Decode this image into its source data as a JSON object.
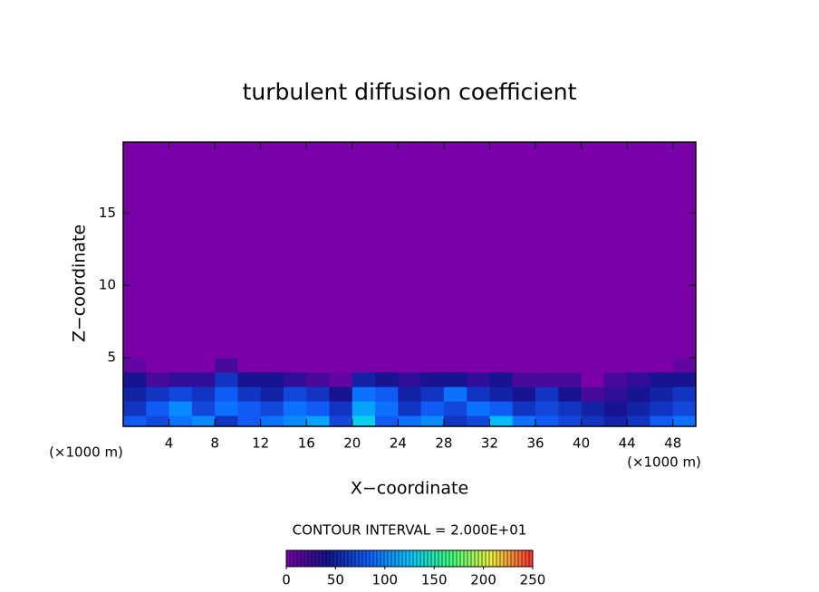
{
  "chart_data": {
    "type": "heatmap",
    "title": "turbulent diffusion coefficient",
    "xlabel": "X−coordinate",
    "ylabel": "Z−coordinate",
    "x_unit": "(×1000 m)",
    "y_unit": "(×1000 m)",
    "annotation": "CONTOUR INTERVAL = 2.000E+01",
    "xlim": [
      0,
      50
    ],
    "xticks": [
      4,
      8,
      12,
      16,
      20,
      24,
      28,
      32,
      36,
      40,
      44,
      48
    ],
    "ylim": [
      0.25,
      19.9
    ],
    "yticks": [
      5,
      10,
      15
    ],
    "x_edges": [
      0,
      2,
      4,
      6,
      8,
      10,
      12,
      14,
      16,
      18,
      20,
      22,
      24,
      26,
      28,
      30,
      32,
      34,
      36,
      38,
      40,
      42,
      44,
      46,
      48,
      50
    ],
    "z_edges": [
      0,
      1,
      2,
      3,
      4,
      5,
      20
    ],
    "z": [
      [
        80,
        70,
        90,
        100,
        60,
        80,
        90,
        100,
        110,
        70,
        130,
        80,
        90,
        100,
        60,
        70,
        120,
        90,
        80,
        70,
        60,
        50,
        60,
        80,
        90
      ],
      [
        60,
        80,
        100,
        70,
        90,
        80,
        70,
        90,
        80,
        60,
        110,
        90,
        60,
        80,
        70,
        90,
        80,
        60,
        70,
        60,
        50,
        40,
        50,
        60,
        70
      ],
      [
        50,
        60,
        70,
        60,
        80,
        60,
        50,
        70,
        60,
        40,
        90,
        80,
        50,
        60,
        90,
        60,
        50,
        40,
        60,
        40,
        20,
        30,
        40,
        50,
        60
      ],
      [
        40,
        20,
        30,
        30,
        60,
        40,
        40,
        30,
        20,
        10,
        50,
        40,
        30,
        40,
        40,
        30,
        40,
        20,
        20,
        20,
        0,
        20,
        30,
        40,
        40
      ],
      [
        10,
        0,
        0,
        0,
        20,
        0,
        0,
        0,
        0,
        0,
        0,
        0,
        0,
        0,
        0,
        0,
        0,
        0,
        0,
        0,
        0,
        0,
        0,
        0,
        10
      ],
      [
        0,
        0,
        0,
        0,
        0,
        0,
        0,
        0,
        0,
        0,
        0,
        0,
        0,
        0,
        0,
        0,
        0,
        0,
        0,
        0,
        0,
        0,
        0,
        0,
        0
      ]
    ],
    "clim": [
      0,
      250
    ],
    "cticks": [
      0,
      50,
      100,
      150,
      200,
      250
    ],
    "colormap": [
      "#7a00a8",
      "#141490",
      "#1060ff",
      "#00c8ff",
      "#40ff80",
      "#f0f040",
      "#ff3030"
    ]
  }
}
